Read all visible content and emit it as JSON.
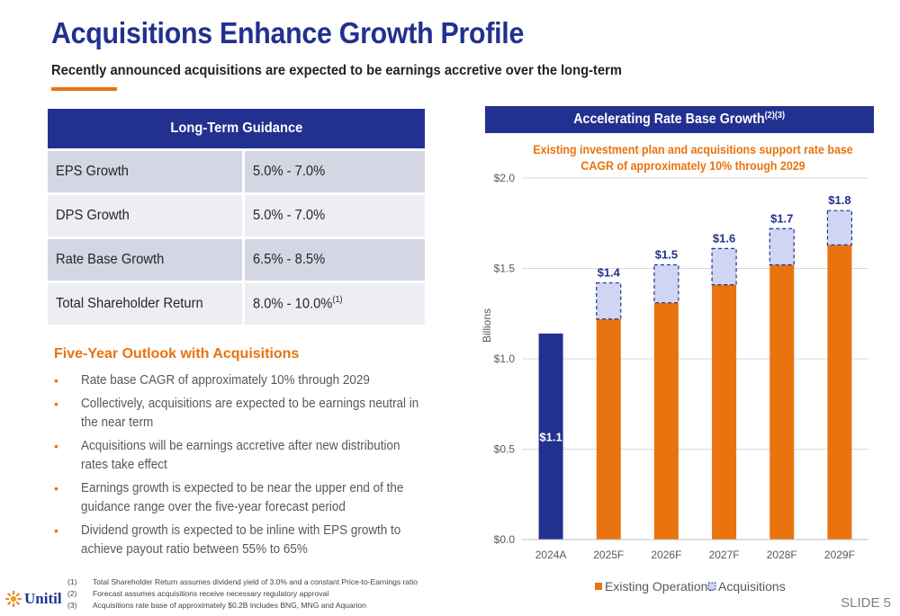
{
  "header": {
    "title": "Acquisitions Enhance Growth Profile",
    "subtitle": "Recently announced acquisitions are expected to be earnings accretive over the long-term"
  },
  "guidance": {
    "title": "Long-Term Guidance",
    "rows": [
      {
        "label": "EPS Growth",
        "value": "5.0% - 7.0%",
        "sup": ""
      },
      {
        "label": "DPS Growth",
        "value": "5.0% - 7.0%",
        "sup": ""
      },
      {
        "label": "Rate Base Growth",
        "value": "6.5% - 8.5%",
        "sup": ""
      },
      {
        "label": "Total Shareholder Return",
        "value": "8.0% - 10.0%",
        "sup": "(1)"
      }
    ]
  },
  "outlook": {
    "title": "Five-Year Outlook with Acquisitions",
    "bullets": [
      "Rate base CAGR of approximately 10% through 2029",
      "Collectively, acquisitions are expected to be earnings neutral in the near term",
      "Acquisitions will be earnings accretive after new distribution rates take effect",
      "Earnings growth is expected to be near the upper end of the guidance range over the five-year forecast period",
      "Dividend growth is expected to be inline with EPS growth to achieve payout ratio between 55% to 65%"
    ]
  },
  "footnotes": [
    {
      "num": "(1)",
      "text": "Total Shareholder Return assumes dividend yield of 3.0% and a constant Price-to-Earnings ratio"
    },
    {
      "num": "(2)",
      "text": "Forecast assumes acquisitions receive necessary regulatory approval"
    },
    {
      "num": "(3)",
      "text": "Acquisitions rate base of approximately $0.2B includes BNG, MNG and Aquarion"
    }
  ],
  "logo": {
    "text": "Unitil"
  },
  "slide": {
    "label": "SLIDE 5"
  },
  "chart_header": {
    "title": "Accelerating Rate Base Growth",
    "sup": "(2)(3)"
  },
  "chart_data": {
    "type": "bar",
    "stacked": true,
    "subtitle": "Existing investment plan and acquisitions support rate base CAGR of approximately 10% through 2029",
    "ylabel": "Billions",
    "ylim": [
      0,
      2.0
    ],
    "yticks": [
      "$0.0",
      "$0.5",
      "$1.0",
      "$1.5",
      "$2.0"
    ],
    "grid": true,
    "legend_position": "bottom",
    "categories": [
      "2024A",
      "2025F",
      "2026F",
      "2027F",
      "2028F",
      "2029F"
    ],
    "series": [
      {
        "name": "Existing Operations",
        "values": [
          1.14,
          1.22,
          1.31,
          1.41,
          1.52,
          1.63
        ]
      },
      {
        "name": "Acquisitions",
        "values": [
          0,
          0.2,
          0.21,
          0.2,
          0.2,
          0.19
        ]
      }
    ],
    "totals_labels": [
      "$1.1",
      "$1.4",
      "$1.5",
      "$1.6",
      "$1.7",
      "$1.8"
    ],
    "colors": {
      "base_2024": "#22318f",
      "existing": "#e8730f",
      "acquisitions": "#cfd5f3",
      "acq_border": "#22318f",
      "label": "#22318f",
      "grid": "#d9d9d9"
    }
  }
}
